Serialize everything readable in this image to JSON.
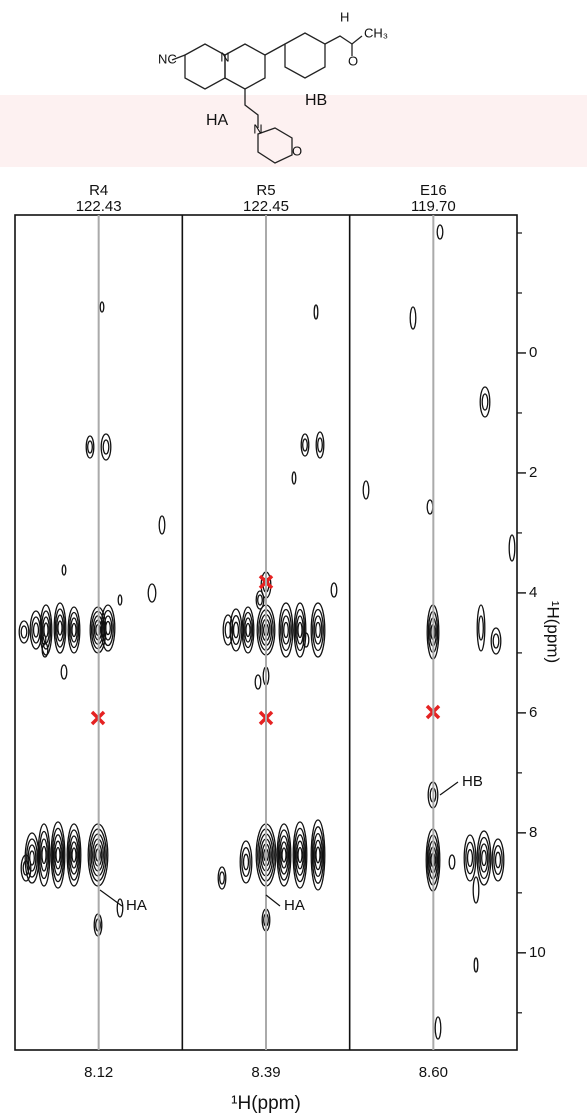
{
  "chart_data": {
    "type": "nmr-strips",
    "strips": [
      {
        "name": "R4",
        "shift": "122.43",
        "x_label": "8.12"
      },
      {
        "name": "R5",
        "shift": "122.45",
        "x_label": "8.39"
      },
      {
        "name": "E16",
        "shift": "119.70",
        "x_label": "8.60"
      }
    ],
    "ylim": [
      -2.3,
      11.62
    ],
    "yticks": [
      0,
      2,
      4,
      6,
      8,
      10
    ],
    "minor_yticks": [
      -2,
      -1,
      1,
      3,
      5,
      7,
      9,
      11
    ],
    "x_axis_label": "¹H(ppm)",
    "y_axis_label": "¹H(ppm)",
    "annotations": [
      "HA",
      "HA",
      "HB"
    ]
  },
  "molecule": {
    "labels": [
      "NC",
      "N",
      "H",
      "O",
      "CH₃",
      "HB",
      "HA",
      "N",
      "O"
    ]
  }
}
